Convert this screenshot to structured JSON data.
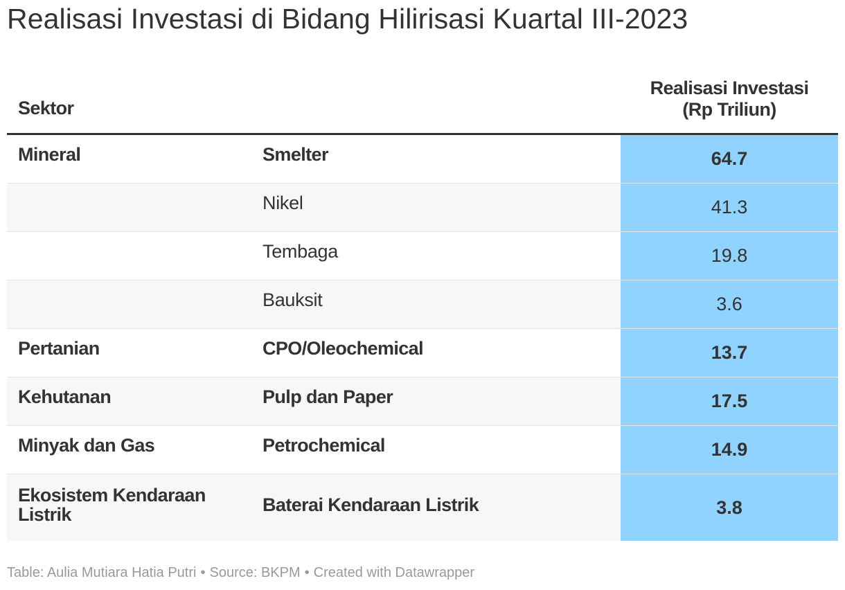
{
  "title": "Realisasi Investasi di Bidang Hilirisasi Kuartal III-2023",
  "header": {
    "col1": "Sektor",
    "col3_line1": "Realisasi Investasi",
    "col3_line2": "(Rp Triliun)"
  },
  "rows": [
    {
      "sektor": "Mineral",
      "sub": "Smelter",
      "value": "64.7",
      "bold": true
    },
    {
      "sektor": "",
      "sub": "Nikel",
      "value": "41.3",
      "bold": false
    },
    {
      "sektor": "",
      "sub": "Tembaga",
      "value": "19.8",
      "bold": false
    },
    {
      "sektor": "",
      "sub": "Bauksit",
      "value": "3.6",
      "bold": false
    },
    {
      "sektor": "Pertanian",
      "sub": "CPO/Oleochemical",
      "value": "13.7",
      "bold": true
    },
    {
      "sektor": "Kehutanan",
      "sub": "Pulp dan Paper",
      "value": "17.5",
      "bold": true
    },
    {
      "sektor": "Minyak dan Gas",
      "sub": "Petrochemical",
      "value": "14.9",
      "bold": true
    },
    {
      "sektor": "Ekosistem Kendaraan Listrik",
      "sub": "Baterai Kendaraan Listrik",
      "value": "3.8",
      "bold": true
    }
  ],
  "footer": {
    "table": "Table: Aulia Mutiara Hatia Putri",
    "source": "Source: BKPM",
    "created": "Created with Datawrapper",
    "separator": "•"
  },
  "colors": {
    "value_column": "#8fd3fe",
    "row_alt": "#f7f7f7",
    "text": "#333333",
    "footer_text": "#999999"
  },
  "chart_data": {
    "type": "table",
    "title": "Realisasi Investasi di Bidang Hilirisasi Kuartal III-2023",
    "columns": [
      "Sektor",
      "",
      "Realisasi Investasi (Rp Triliun)"
    ],
    "rows": [
      [
        "Mineral",
        "Smelter",
        64.7
      ],
      [
        "",
        "Nikel",
        41.3
      ],
      [
        "",
        "Tembaga",
        19.8
      ],
      [
        "",
        "Bauksit",
        3.6
      ],
      [
        "Pertanian",
        "CPO/Oleochemical",
        13.7
      ],
      [
        "Kehutanan",
        "Pulp dan Paper",
        17.5
      ],
      [
        "Minyak dan Gas",
        "Petrochemical",
        14.9
      ],
      [
        "Ekosistem Kendaraan Listrik",
        "Baterai Kendaraan Listrik",
        3.8
      ]
    ]
  }
}
